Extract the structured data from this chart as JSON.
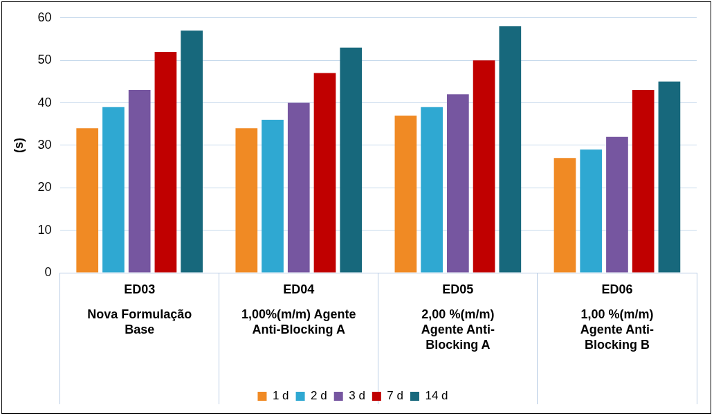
{
  "chart_data": {
    "type": "bar",
    "ylabel": "(s)",
    "categories": [
      "ED03\nNova Formulação\nBase",
      "ED04\n1,00%(m/m) Agente\nAnti-Blocking A",
      "ED05\n2,00 %(m/m)\nAgente Anti-\nBlocking A",
      "ED06\n1,00 %(m/m)\nAgente Anti-\nBlocking B"
    ],
    "series": [
      {
        "name": "1 d",
        "color": "#f08a24",
        "values": [
          34,
          34,
          37,
          27
        ]
      },
      {
        "name": "2 d",
        "color": "#2fa8d2",
        "values": [
          39,
          36,
          39,
          29
        ]
      },
      {
        "name": "3 d",
        "color": "#7656a0",
        "values": [
          43,
          40,
          42,
          32
        ]
      },
      {
        "name": "7 d",
        "color": "#c00000",
        "values": [
          52,
          47,
          50,
          43
        ]
      },
      {
        "name": "14 d",
        "color": "#17687c",
        "values": [
          57,
          53,
          58,
          45
        ]
      }
    ],
    "ylim": [
      0,
      60
    ],
    "yticks": [
      0,
      10,
      20,
      30,
      40,
      50,
      60
    ],
    "grid": "y",
    "legend": "bottom"
  }
}
